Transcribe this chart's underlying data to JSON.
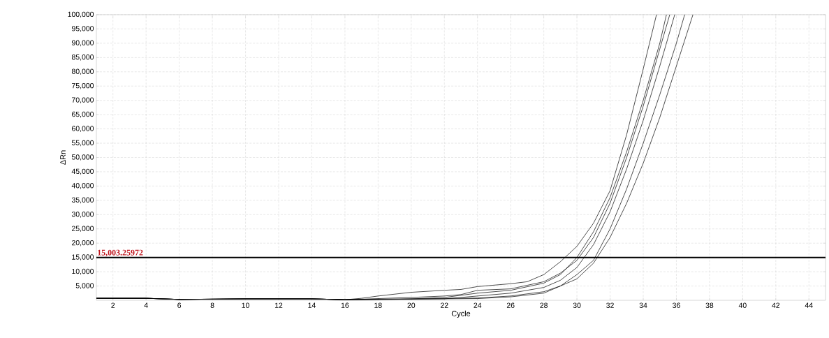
{
  "chart_data": {
    "type": "line",
    "xlabel": "Cycle",
    "ylabel": "ΔRn",
    "xlim": [
      1,
      45
    ],
    "ylim": [
      0,
      100000
    ],
    "xticks": [
      2,
      4,
      6,
      8,
      10,
      12,
      14,
      16,
      18,
      20,
      22,
      24,
      26,
      28,
      30,
      32,
      34,
      36,
      38,
      40,
      42,
      44
    ],
    "yticks": [
      {
        "value": 5000,
        "label": "5,000"
      },
      {
        "value": 10000,
        "label": "10,000"
      },
      {
        "value": 15000,
        "label": "15,000"
      },
      {
        "value": 20000,
        "label": "20,000"
      },
      {
        "value": 25000,
        "label": "25,000"
      },
      {
        "value": 30000,
        "label": "30,000"
      },
      {
        "value": 35000,
        "label": "35,000"
      },
      {
        "value": 40000,
        "label": "40,000"
      },
      {
        "value": 45000,
        "label": "45,000"
      },
      {
        "value": 50000,
        "label": "50,000"
      },
      {
        "value": 55000,
        "label": "55,000"
      },
      {
        "value": 60000,
        "label": "60,000"
      },
      {
        "value": 65000,
        "label": "65,000"
      },
      {
        "value": 70000,
        "label": "70,000"
      },
      {
        "value": 75000,
        "label": "75,000"
      },
      {
        "value": 80000,
        "label": "80,000"
      },
      {
        "value": 85000,
        "label": "85,000"
      },
      {
        "value": 90000,
        "label": "90,000"
      },
      {
        "value": 95000,
        "label": "95,000"
      },
      {
        "value": 100000,
        "label": "100,000"
      }
    ],
    "grid": true,
    "ref_lines": [
      {
        "axis": "y",
        "value": 15003.25972,
        "label": "15,003.25972",
        "color": "#000000"
      }
    ],
    "series": [
      {
        "color": "#000000",
        "x": [
          1,
          4,
          6,
          10,
          14,
          16,
          17,
          18,
          20,
          22,
          23,
          24,
          26,
          27,
          28,
          29,
          30,
          31,
          32,
          33,
          34,
          34.8
        ],
        "values": [
          700,
          700,
          300,
          500,
          500,
          200,
          700,
          1500,
          2800,
          3500,
          3800,
          4800,
          5800,
          6500,
          9000,
          13500,
          18900,
          27000,
          38400,
          58000,
          81000,
          100000
        ]
      },
      {
        "color": "#000000",
        "x": [
          1,
          4,
          6,
          10,
          14,
          16,
          20,
          22,
          24,
          26,
          28,
          29,
          30,
          31,
          32,
          33,
          34,
          35,
          35.4
        ],
        "values": [
          700,
          700,
          300,
          500,
          500,
          200,
          500,
          1000,
          2500,
          3500,
          6000,
          9000,
          15000,
          24000,
          36000,
          52000,
          70000,
          90000,
          100000
        ]
      },
      {
        "color": "#000000",
        "x": [
          1,
          4,
          6,
          10,
          14,
          16,
          20,
          22,
          23,
          24,
          26,
          28,
          29,
          30,
          31,
          32,
          33,
          34,
          35,
          35.6
        ],
        "values": [
          700,
          700,
          300,
          500,
          500,
          200,
          1000,
          1500,
          2000,
          3500,
          4000,
          6500,
          9500,
          14000,
          22000,
          34000,
          50000,
          68000,
          88000,
          100000
        ]
      },
      {
        "color": "#000000",
        "x": [
          1,
          4,
          6,
          10,
          14,
          16,
          22,
          24,
          26,
          28,
          29,
          30,
          31,
          32,
          33,
          34,
          35,
          35.9
        ],
        "values": [
          700,
          700,
          300,
          500,
          500,
          200,
          500,
          1500,
          2500,
          4500,
          7000,
          11500,
          19500,
          31000,
          46000,
          63000,
          82000,
          100000
        ]
      },
      {
        "color": "#000000",
        "x": [
          1,
          4,
          6,
          10,
          14,
          16,
          24,
          26,
          28,
          29,
          30,
          31,
          32,
          33,
          34,
          35,
          36,
          36.5
        ],
        "values": [
          700,
          700,
          300,
          500,
          500,
          200,
          800,
          1500,
          3000,
          5000,
          9000,
          14000,
          25000,
          39000,
          55000,
          72000,
          90000,
          100000
        ]
      },
      {
        "color": "#000000",
        "x": [
          1,
          4,
          6,
          10,
          14,
          16,
          24,
          26,
          28,
          30,
          31,
          32,
          33,
          34,
          35,
          36,
          37
        ],
        "values": [
          700,
          700,
          300,
          500,
          500,
          200,
          600,
          1200,
          2500,
          7500,
          13000,
          22000,
          34000,
          48000,
          64000,
          82000,
          100000
        ]
      }
    ]
  }
}
